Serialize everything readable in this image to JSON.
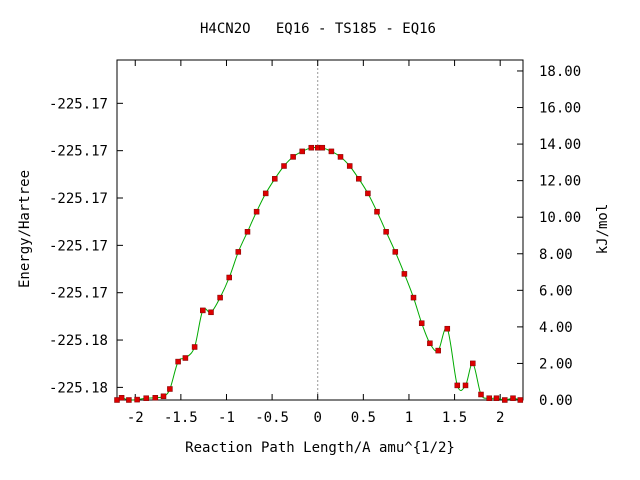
{
  "chart_data": {
    "type": "line",
    "title": "H4CN2O   EQ16 - TS185 - EQ16",
    "xlabel": "Reaction Path Length/A amu^{1/2}",
    "ylabel": "Energy/Hartree",
    "y2label": "kJ/mol",
    "xlim": [
      -2.2,
      2.25
    ],
    "y2lim": [
      0,
      18.6
    ],
    "xticks": [
      -2,
      -1.5,
      -1,
      -0.5,
      0,
      0.5,
      1,
      1.5,
      2
    ],
    "xtick_labels": [
      "-2",
      "-1.5",
      "-1",
      "-0.5",
      "0",
      "0.5",
      "1",
      "1.5",
      "2"
    ],
    "yticks_kj": [
      0.69,
      3.28,
      5.87,
      8.46,
      11.05,
      13.64,
      16.23
    ],
    "ytick_labels": [
      "-225.18",
      "-225.18",
      "-225.17",
      "-225.17",
      "-225.17",
      "-225.17",
      "-225.17"
    ],
    "y2ticks": [
      0,
      2,
      4,
      6,
      8,
      10,
      12,
      14,
      16,
      18
    ],
    "y2tick_labels": [
      "0.00",
      "2.00",
      "4.00",
      "6.00",
      "8.00",
      "10.00",
      "12.00",
      "14.00",
      "16.00",
      "18.00"
    ],
    "grid": false,
    "ts_marker_x": 0,
    "series": [
      {
        "line_color": "#00aa00",
        "marker_color": "#dd0000",
        "x": [
          -2.2,
          -2.15,
          -2.07,
          -1.98,
          -1.88,
          -1.78,
          -1.69,
          -1.62,
          -1.53,
          -1.45,
          -1.35,
          -1.26,
          -1.17,
          -1.07,
          -0.97,
          -0.87,
          -0.77,
          -0.67,
          -0.57,
          -0.47,
          -0.37,
          -0.27,
          -0.17,
          -0.07,
          0,
          0.05,
          0.15,
          0.25,
          0.35,
          0.45,
          0.55,
          0.65,
          0.75,
          0.85,
          0.95,
          1.05,
          1.14,
          1.23,
          1.32,
          1.42,
          1.53,
          1.62,
          1.7,
          1.79,
          1.88,
          1.96,
          2.05,
          2.14,
          2.22
        ],
        "y": [
          0.0,
          0.12,
          0.0,
          0.02,
          0.1,
          0.12,
          0.2,
          0.6,
          2.1,
          2.3,
          2.9,
          4.9,
          4.8,
          5.6,
          6.7,
          8.1,
          9.2,
          10.3,
          11.3,
          12.1,
          12.8,
          13.3,
          13.6,
          13.8,
          13.8,
          13.8,
          13.6,
          13.3,
          12.8,
          12.1,
          11.3,
          10.3,
          9.2,
          8.1,
          6.9,
          5.6,
          4.2,
          3.1,
          2.7,
          3.9,
          0.8,
          0.8,
          2.0,
          0.3,
          0.1,
          0.1,
          0.0,
          0.1,
          0.0
        ]
      }
    ]
  }
}
